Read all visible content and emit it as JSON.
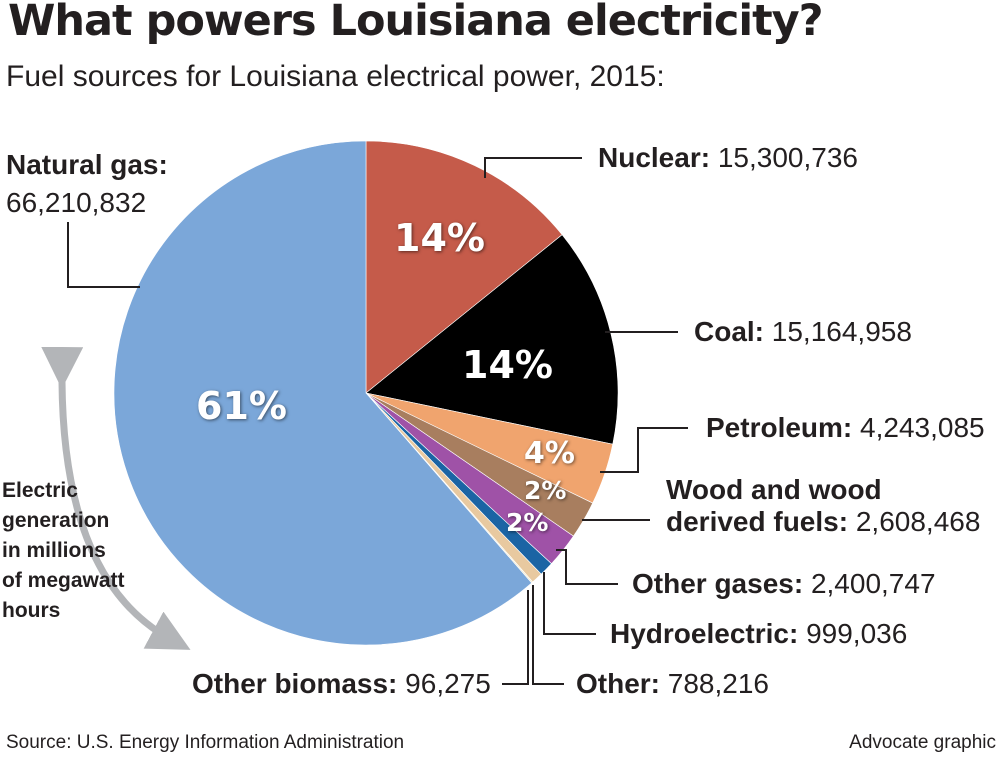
{
  "title": "What powers Louisiana electricity?",
  "subtitle": "Fuel sources for Louisiana electrical power, 2015:",
  "axis_note": [
    "Electric",
    "generation",
    "in millions",
    "of megawatt",
    "hours"
  ],
  "source": "Source: U.S. Energy Information Administration",
  "credit": "Advocate graphic",
  "colors": {
    "natural_gas": "#7ba7d9",
    "nuclear": "#c55b4a",
    "coal": "#000000",
    "petroleum": "#f0a46e",
    "wood": "#a87e5f",
    "other_gases": "#9f52a7",
    "hydroelectric": "#1b64a4",
    "other": "#e8c9a0",
    "other_biomass": "#f2eacc",
    "arrow": "#b3b5b8"
  },
  "chart_data": {
    "type": "pie",
    "title": "What powers Louisiana electricity?",
    "subtitle": "Fuel sources for Louisiana electrical power, 2015:",
    "slices": [
      {
        "key": "nuclear",
        "label": "Nuclear:",
        "value": 15300736,
        "value_text": "15,300,736",
        "pct": "14%"
      },
      {
        "key": "coal",
        "label": "Coal:",
        "value": 15164958,
        "value_text": "15,164,958",
        "pct": "14%"
      },
      {
        "key": "petroleum",
        "label": "Petroleum:",
        "value": 4243085,
        "value_text": "4,243,085",
        "pct": "4%"
      },
      {
        "key": "wood",
        "label_lines": [
          "Wood and wood",
          "derived fuels:"
        ],
        "value": 2608468,
        "value_text": "2,608,468",
        "pct": "2%"
      },
      {
        "key": "other_gases",
        "label": "Other gases:",
        "value": 2400747,
        "value_text": "2,400,747",
        "pct": "2%"
      },
      {
        "key": "hydroelectric",
        "label": "Hydroelectric:",
        "value": 999036,
        "value_text": "999,036",
        "pct": ""
      },
      {
        "key": "other",
        "label": "Other:",
        "value": 788216,
        "value_text": "788,216",
        "pct": ""
      },
      {
        "key": "other_biomass",
        "label": "Other biomass:",
        "value": 96275,
        "value_text": "96,275",
        "pct": ""
      },
      {
        "key": "natural_gas",
        "label": "Natural gas:",
        "value": 66210832,
        "value_text": "66,210,832",
        "pct": "61%"
      }
    ]
  }
}
